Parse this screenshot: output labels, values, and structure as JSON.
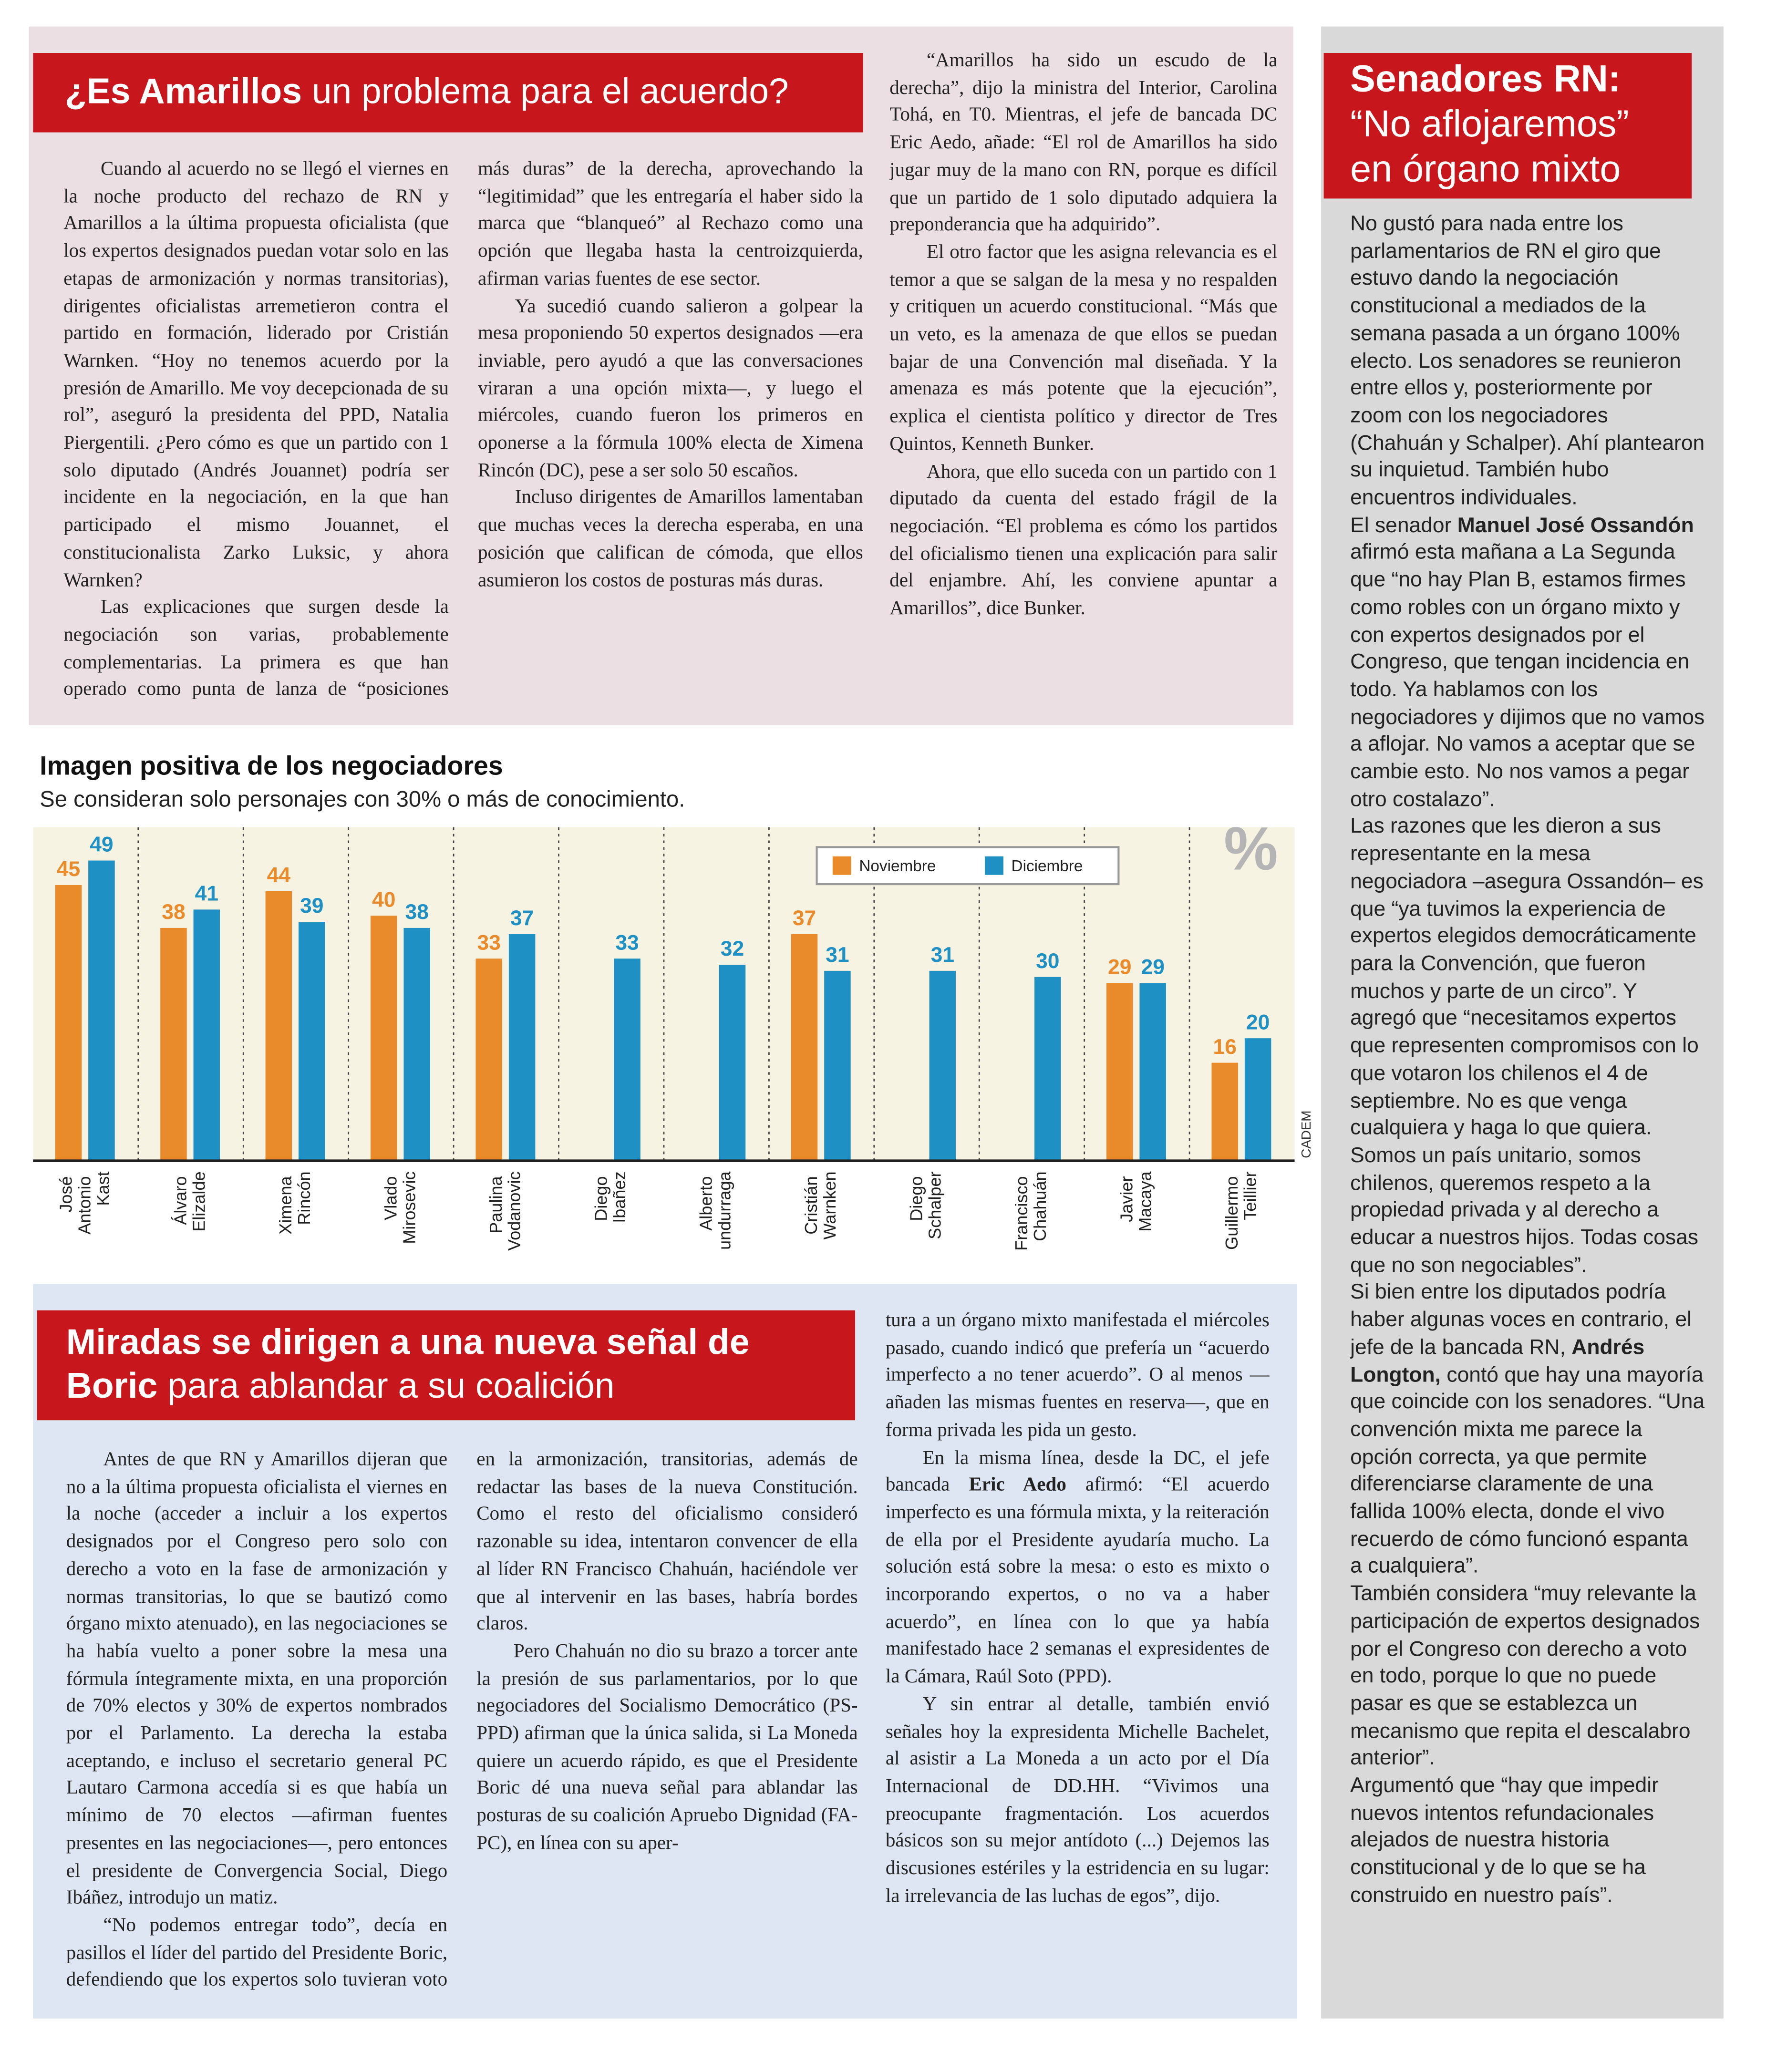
{
  "top_article": {
    "title": {
      "bold": "¿Es Amarillos",
      "regular": " un problema para el acuerdo?"
    },
    "columns": [
      [
        "Cuando al acuerdo no se llegó el viernes en la noche producto del rechazo de RN y Amarillos a la última propuesta oficialista (que los expertos designados puedan votar solo en las etapas de armonización y normas transitorias), dirigentes oficialistas arremetieron contra el partido en formación, liderado por Cristián Warnken. “Hoy no tenemos acuerdo por la presión de Amarillo. Me voy decepcionada de su rol”, aseguró la presidenta del PPD, Natalia Piergentili. ¿Pero cómo es que un partido con 1 solo diputado (Andrés Jouannet) podría ser incidente en la negociación, en la que han participado el mismo Jouannet, el constitucionalista Zarko Luksic, y ahora Warnken?",
        "Las explicaciones que surgen desde la negociación son varias, probablemente complementarias. La primera es que han operado como punta de lanza de “posiciones más duras” de la derecha, aprovechando la “legitimidad” que les entregaría el haber sido la marca que “blanqueó” al Rechazo como una opción que llegaba hasta la centroizquierda, afirman varias fuentes de ese sector.",
        "Ya sucedió cuando salieron a golpear la mesa proponiendo 50 expertos designados —era inviable, pero ayudó a que las conversaciones viraran a una opción mixta—, y luego el miércoles, cuando fueron los primeros en oponerse a la fórmula 100% electa de Ximena Rincón (DC), pese a ser solo 50 escaños.",
        "Incluso dirigentes de Amarillos lamentaban que muchas veces la derecha esperaba, en una posición que califican de cómoda, que ellos asumieron los costos de posturas más duras."
      ],
      [
        "“Amarillos ha sido un escudo de la derecha”, dijo la ministra del Interior, Carolina Tohá, en T0. Mientras, el jefe de bancada DC Eric Aedo, añade: “El rol de Amarillos ha sido jugar muy de la mano con RN, porque es difícil que un partido de 1 solo diputado adquiera la preponderancia que ha adquirido”.",
        "El otro factor que les asigna relevancia es el temor a que se salgan de la mesa y no respalden y critiquen un acuerdo constitucional. “Más que un veto, es la amenaza de que ellos se puedan bajar de una Convención mal diseñada. Y la amenaza es más potente que la ejecución”, explica el cientista político y director de Tres Quintos, Kenneth Bunker.",
        "Ahora, que ello suceda con un partido con 1 diputado da cuenta del estado frágil de la negociación. “El problema es cómo los partidos del oficialismo tienen una explicación para salir del enjambre. Ahí, les conviene apuntar a Amarillos”, dice Bunker."
      ]
    ]
  },
  "chart_data": {
    "type": "bar",
    "title": "Imagen positiva de los negociadores",
    "subtitle": "Se consideran solo personajes con 30% o más de conocimiento.",
    "unit": "%",
    "source": "CADEM",
    "categories": [
      "José Antonio Kast",
      "Álvaro Elizalde",
      "Ximena Rincón",
      "Vlado Mirosevic",
      "Paulina Vodanovic",
      "Diego Ibañez",
      "Alberto undurraga",
      "Cristián Warnken",
      "Diego Schalper",
      "Francisco Chahuán",
      "Javier Macaya",
      "Guillermo Teillier"
    ],
    "series": [
      {
        "name": "Noviembre",
        "color": "#e98b2a",
        "values": [
          45,
          38,
          44,
          40,
          33,
          null,
          null,
          37,
          null,
          null,
          29,
          16
        ]
      },
      {
        "name": "Diciembre",
        "color": "#1e90c3",
        "values": [
          49,
          41,
          39,
          38,
          37,
          33,
          32,
          31,
          31,
          30,
          29,
          20
        ]
      }
    ],
    "ylim": [
      0,
      54
    ]
  },
  "bottom_article": {
    "title": {
      "bold": "Miradas se dirigen a una nueva señal de Boric",
      "regular": " para ablandar a su coalición"
    },
    "columns": [
      [
        "Antes de que RN y Amarillos dijeran que no a la última propuesta oficialista el viernes en la noche (acceder a incluir a los expertos designados por el Congreso pero solo con derecho a voto en la fase de armonización y normas transitorias, lo que se bautizó como órgano mixto atenuado), en las negociaciones se ha había vuelto a poner sobre la mesa una fórmula íntegramente mixta, en una proporción de 70% electos y 30% de expertos nombrados por el Parlamento. La derecha la estaba aceptando, e incluso el secretario general PC Lautaro Carmona accedía si es que había un mínimo de 70 electos —afirman fuentes presentes en las negociaciones—, pero entonces el presidente de Convergencia Social, Diego Ibáñez, introdujo un matiz.",
        "“No podemos entregar todo”, decía en pasillos el líder del partido del Presidente Boric, defendiendo que los expertos solo tuvieran voto en la armonización, transitorias, además de redactar las bases de la nueva Constitución. Como el resto del oficialismo consideró razonable su idea, intentaron convencer de ella al líder RN Francisco Chahuán, haciéndole ver que al intervenir en las bases, habría bordes claros.",
        "Pero Chahuán no dio su brazo a torcer ante la presión de sus parlamentarios, por lo que negociadores del Socialismo Democrático (PS-PPD) afirman que la única salida, si La Moneda quiere un acuerdo rápido, es que el Presidente Boric dé una nueva señal para ablandar las posturas de su coalición Apruebo Dignidad (FA-PC), en línea con su aper-"
      ],
      [
        "tura a un órgano mixto manifestada el miércoles pasado, cuando indicó que prefería un “acuerdo imperfecto a no tener acuerdo”. O al menos —añaden las mismas fuentes en reserva—, que en forma privada les pida un gesto.",
        [
          "En la misma línea, desde la DC, el jefe bancada ",
          "Eric Aedo",
          " afirmó: “El acuerdo imperfecto es una fórmula mixta, y la reiteración de ella por el Presidente ayudaría mucho. La solución está sobre la mesa: o esto es mixto o incorporando expertos, o no va a haber acuerdo”, en línea con lo que ya había manifestado hace 2 semanas el expresidentes de la Cámara, Raúl Soto (PPD)."
        ],
        "Y sin entrar al detalle, también envió señales hoy la expresidenta Michelle Bachelet, al asistir a La Moneda a un acto por el Día Internacional de DD.HH. “Vivimos una preocupante fragmentación. Los acuerdos básicos son su mejor antídoto (...) Dejemos las discusiones estériles y la estridencia en su lugar: la irrelevancia de las luchas de egos”, dijo."
      ]
    ]
  },
  "sidebar": {
    "title": {
      "bold": "Senadores RN:",
      "regular": "“No aflojaremos” en órgano mixto"
    },
    "paragraphs": [
      "No gustó para nada entre los parlamentarios de RN el giro que estuvo dando la negociación constitucional a mediados de la semana pasada a un órgano 100% electo. Los senadores se reunieron entre ellos y, posteriormente por zoom con los negociadores (Chahuán y Schalper). Ahí plantearon su inquietud. También hubo encuentros individuales.",
      [
        "El senador ",
        "Manuel José Ossandón",
        " afirmó esta mañana a La Segunda que “no hay Plan B, estamos firmes como robles con un órgano mixto y con expertos designados por el Congreso, que tengan incidencia en todo. Ya hablamos con los negociadores y dijimos que no vamos a aflojar. No vamos a aceptar que se cambie esto. No nos vamos a pegar otro costalazo”."
      ],
      "Las razones que les dieron a sus representante en la mesa negociadora –asegura Ossandón– es que “ya tuvimos la experiencia de expertos elegidos democráticamente para la Convención, que fueron muchos y parte de un circo”. Y agregó que “necesitamos expertos que representen compromisos con lo que votaron los chilenos el 4 de septiembre. No es que venga cualquiera y haga lo que quiera. Somos un país unitario, somos chilenos, queremos respeto a la propiedad privada y al derecho a educar a nuestros hijos. Todas cosas que no son negociables”.",
      [
        "Si bien entre los diputados podría haber algunas voces en contrario, el jefe de la bancada RN, ",
        "Andrés Longton,",
        " contó que hay una mayoría que coincide con los senadores. “Una convención mixta me parece la opción correcta, ya que permite diferenciarse claramente de una fallida 100% electa, donde el vivo recuerdo de cómo funcionó espanta a cualquiera”."
      ],
      "También considera “muy relevante la participación de expertos designados por el Congreso con derecho a voto en todo, porque lo que no puede pasar es que se establezca un mecanismo que repita el descalabro anterior”.",
      "Argumentó que “hay que impedir nuevos intentos refundacionales alejados de nuestra historia constitucional y de lo que se ha construido en nuestro país”."
    ]
  }
}
